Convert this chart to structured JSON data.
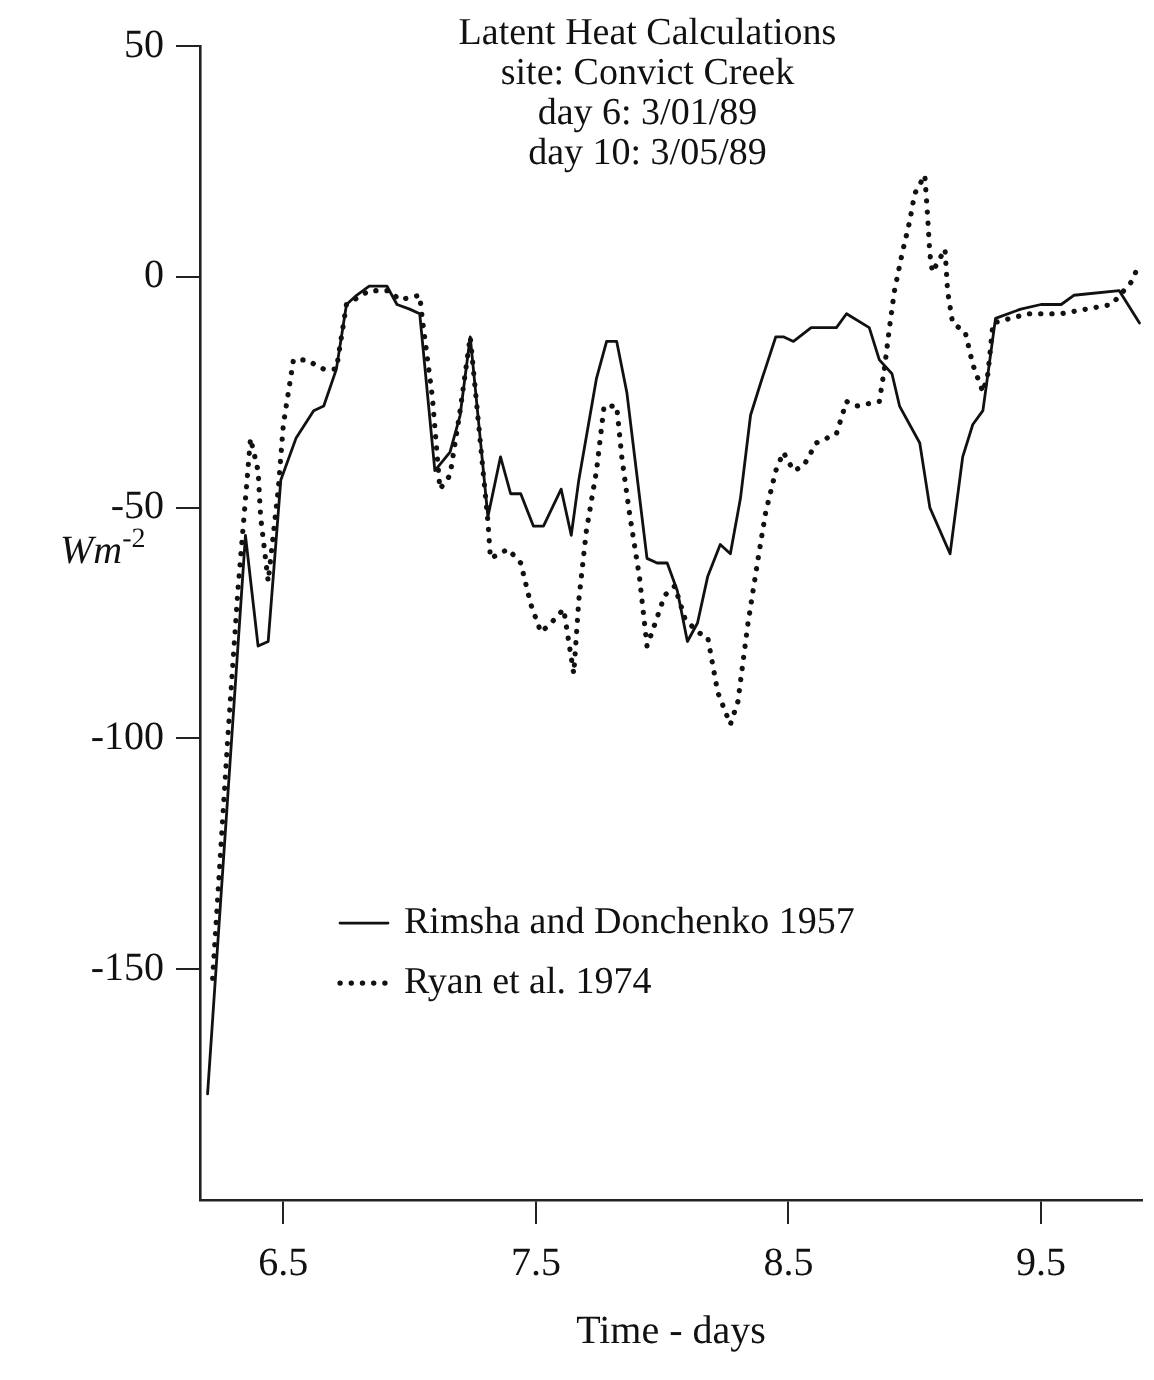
{
  "chart_data": {
    "type": "line",
    "title": "Latent Heat Calculations",
    "subtitle": "site: Convict Creek",
    "annotations": [
      "day 6: 3/01/89",
      "day 10: 3/05/89"
    ],
    "xlabel": "Time - days",
    "ylabel": "Wm$^{-2}$",
    "xlim": [
      6.17,
      9.9
    ],
    "xticks": [
      6.5,
      7.5,
      8.5,
      9.5
    ],
    "ylim": [
      -200,
      50
    ],
    "yticks": [
      50,
      0,
      -50,
      -100,
      -150
    ],
    "grid": false,
    "legend": "bottom left",
    "marker": "none",
    "series": [
      {
        "name": "Rimsha and Donchenko 1957",
        "color": "#111111",
        "line_style": "solid",
        "x": [
          6.2,
          6.35,
          6.4,
          6.44,
          6.49,
          6.55,
          6.62,
          6.66,
          6.71,
          6.75,
          6.79,
          6.84,
          6.91,
          6.95,
          7.0,
          7.04,
          7.1,
          7.16,
          7.2,
          7.24,
          7.31,
          7.36,
          7.4,
          7.44,
          7.49,
          7.53,
          7.6,
          7.64,
          7.67,
          7.74,
          7.78,
          7.82,
          7.86,
          7.94,
          7.98,
          8.02,
          8.06,
          8.1,
          8.14,
          8.18,
          8.23,
          8.27,
          8.31,
          8.35,
          8.39,
          8.45,
          8.48,
          8.52,
          8.59,
          8.69,
          8.73,
          8.82,
          8.86,
          8.91,
          8.94,
          9.02,
          9.06,
          9.14,
          9.19,
          9.23,
          9.27,
          9.32,
          9.42,
          9.5,
          9.58,
          9.63,
          9.81,
          9.89
        ],
        "values": [
          -177,
          -56,
          -80,
          -79,
          -44,
          -35,
          -29,
          -28,
          -20,
          -6,
          -4,
          -2,
          -2,
          -6,
          -7,
          -8,
          -42,
          -38,
          -30,
          -13,
          -52,
          -39,
          -47,
          -47,
          -54,
          -54,
          -46,
          -56,
          -44,
          -22,
          -14,
          -14,
          -25,
          -61,
          -62,
          -62,
          -68,
          -79,
          -75,
          -65,
          -58,
          -60,
          -48,
          -30,
          -23,
          -13,
          -13,
          -14,
          -11,
          -11,
          -8,
          -11,
          -18,
          -21,
          -28,
          -36,
          -50,
          -60,
          -39,
          -32,
          -29,
          -9,
          -7,
          -6,
          -6,
          -4,
          -3,
          -10
        ]
      },
      {
        "name": "Ryan et al. 1974",
        "color": "#111111",
        "line_style": "dotted",
        "x": [
          6.22,
          6.28,
          6.32,
          6.37,
          6.4,
          6.41,
          6.44,
          6.48,
          6.5,
          6.54,
          6.59,
          6.66,
          6.71,
          6.75,
          6.84,
          6.92,
          6.96,
          7.04,
          7.05,
          7.09,
          7.12,
          7.16,
          7.2,
          7.24,
          7.31,
          7.32,
          7.39,
          7.44,
          7.48,
          7.52,
          7.56,
          7.61,
          7.65,
          7.67,
          7.7,
          7.74,
          7.77,
          7.82,
          7.84,
          7.87,
          7.91,
          7.94,
          7.96,
          8.01,
          8.05,
          8.09,
          8.14,
          8.18,
          8.22,
          8.27,
          8.3,
          8.34,
          8.38,
          8.41,
          8.45,
          8.48,
          8.52,
          8.56,
          8.61,
          8.69,
          8.73,
          8.77,
          8.86,
          8.88,
          8.9,
          8.92,
          8.95,
          8.98,
          9.0,
          9.04,
          9.05,
          9.06,
          9.07,
          9.12,
          9.13,
          9.15,
          9.2,
          9.23,
          9.27,
          9.29,
          9.31,
          9.45,
          9.58,
          9.78,
          9.86,
          9.89
        ],
        "values": [
          -152,
          -100,
          -68,
          -35,
          -42,
          -52,
          -66,
          -46,
          -32,
          -18,
          -18,
          -20,
          -20,
          -6,
          -3,
          -3,
          -5,
          -4,
          -9,
          -26,
          -46,
          -43,
          -29,
          -13,
          -53,
          -61,
          -59,
          -62,
          -71,
          -77,
          -75,
          -72,
          -86,
          -70,
          -55,
          -42,
          -28,
          -28,
          -39,
          -51,
          -65,
          -80,
          -77,
          -69,
          -67,
          -74,
          -77,
          -78,
          -90,
          -97,
          -92,
          -75,
          -61,
          -51,
          -42,
          -38,
          -42,
          -41,
          -36,
          -34,
          -27,
          -28,
          -27,
          -20,
          -11,
          -3,
          5,
          12,
          18,
          22,
          14,
          5,
          1,
          6,
          -3,
          -10,
          -12,
          -19,
          -25,
          -21,
          -10,
          -8,
          -8,
          -6,
          -1,
          3
        ]
      }
    ]
  }
}
